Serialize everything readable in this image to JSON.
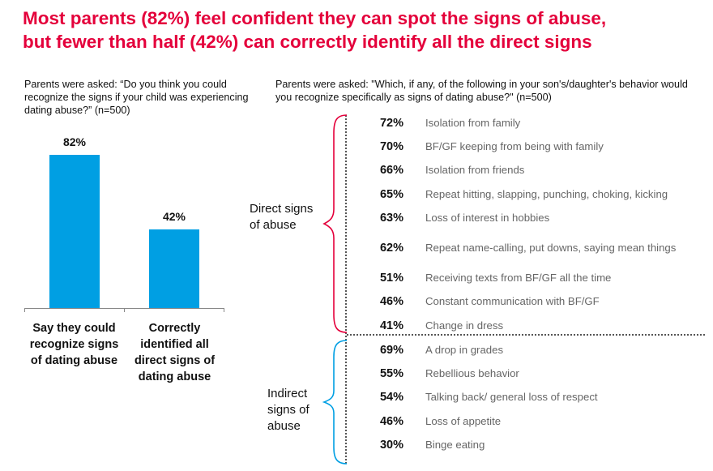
{
  "title": {
    "line1": "Most parents (82%) feel confident they can spot the signs of abuse,",
    "line2": "but fewer than half (42%) can correctly identify all the direct signs"
  },
  "left_question": "Parents were asked: “Do you think you could recognize the signs if your child was experiencing dating abuse?” (n=500)",
  "right_question": "Parents were asked: \"Which, if any, of the following in your son's/daughter's behavior would you recognize specifically as signs of dating abuse?\" (n=500)",
  "chart_data": {
    "type": "bar",
    "categories": [
      "Say they could recognize signs of dating abuse",
      "Correctly identified all direct signs of dating abuse"
    ],
    "values": [
      82,
      42
    ],
    "value_labels": [
      "82%",
      "42%"
    ],
    "ylim": [
      0,
      100
    ],
    "color": "#009fe3",
    "grid": false
  },
  "signs": {
    "direct": {
      "label": "Direct signs of abuse",
      "color": "#e4003b",
      "items": [
        {
          "pct": "72%",
          "label": "Isolation from family"
        },
        {
          "pct": "70%",
          "label": "BF/GF keeping from being with family"
        },
        {
          "pct": "66%",
          "label": "Isolation from friends"
        },
        {
          "pct": "65%",
          "label": "Repeat hitting, slapping, punching, choking, kicking"
        },
        {
          "pct": "63%",
          "label": "Loss of interest in hobbies"
        },
        {
          "pct": "62%",
          "label": "Repeat name-calling, put downs, saying mean things"
        },
        {
          "pct": "51%",
          "label": "Receiving texts from BF/GF all the time"
        },
        {
          "pct": "46%",
          "label": "Constant communication with BF/GF"
        },
        {
          "pct": "41%",
          "label": "Change in dress"
        }
      ]
    },
    "indirect": {
      "label": "Indirect signs of abuse",
      "color": "#009fe3",
      "items": [
        {
          "pct": "69%",
          "label": "A drop in grades"
        },
        {
          "pct": "55%",
          "label": "Rebellious behavior"
        },
        {
          "pct": "54%",
          "label": "Talking back/ general loss of respect"
        },
        {
          "pct": "46%",
          "label": "Loss of appetite"
        },
        {
          "pct": "30%",
          "label": "Binge eating"
        }
      ]
    }
  }
}
